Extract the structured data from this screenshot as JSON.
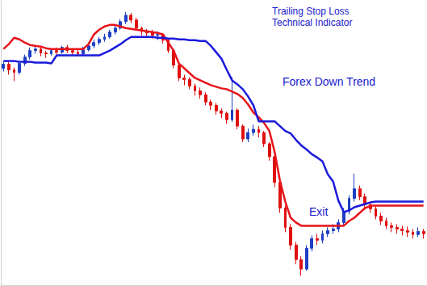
{
  "chart_data": {
    "type": "candlestick",
    "title": "Trailing Stop Loss",
    "subtitle": "Technical Indicator",
    "annotations": [
      "Forex Down Trend",
      "Exit"
    ],
    "tick_labels": false,
    "grid": false,
    "ylim": [
      0,
      354
    ],
    "x": [
      0,
      1,
      2,
      3,
      4,
      5,
      6,
      7,
      8,
      9,
      10,
      11,
      12,
      13,
      14,
      15,
      16,
      17,
      18,
      19,
      20,
      21,
      22,
      23,
      24,
      25,
      26,
      27,
      28,
      29,
      30,
      31,
      32,
      33,
      34,
      35,
      36,
      37,
      38,
      39,
      40,
      41,
      42,
      43,
      44,
      45,
      46,
      47,
      48,
      49,
      50,
      51,
      52,
      53,
      54,
      55,
      56,
      57,
      58,
      59,
      60,
      61,
      62,
      63,
      64,
      65,
      66,
      67,
      68,
      69,
      70,
      71,
      72,
      73,
      74,
      75,
      76,
      77,
      78,
      79
    ],
    "series": [
      {
        "type": "candlestick",
        "colors": [
          "#1f3fc4",
          "#e01010"
        ],
        "open": [
          270,
          275,
          268,
          265,
          276,
          284,
          292,
          294,
          289,
          288,
          292,
          290,
          296,
          292,
          290,
          288,
          293,
          298,
          302,
          306,
          309,
          315,
          320,
          328,
          336,
          330,
          320,
          316,
          314,
          311,
          312,
          305,
          292,
          274,
          258,
          256,
          248,
          242,
          237,
          228,
          224,
          217,
          214,
          206,
          218,
          198,
          182,
          190,
          194,
          190,
          176,
          160,
          128,
          96,
          72,
          50,
          32,
          20,
          46,
          58,
          56,
          64,
          68,
          70,
          78,
          92,
          108,
          120,
          110,
          100,
          95,
          86,
          80,
          74,
          72,
          70,
          68,
          66,
          63,
          67
        ],
        "close": [
          275,
          268,
          265,
          276,
          284,
          292,
          294,
          289,
          288,
          292,
          290,
          296,
          292,
          290,
          288,
          293,
          298,
          302,
          306,
          309,
          315,
          320,
          328,
          336,
          330,
          320,
          316,
          314,
          311,
          312,
          305,
          292,
          274,
          258,
          256,
          248,
          242,
          237,
          228,
          224,
          217,
          214,
          206,
          218,
          198,
          182,
          190,
          194,
          190,
          176,
          160,
          128,
          96,
          72,
          50,
          32,
          20,
          46,
          58,
          56,
          64,
          68,
          70,
          78,
          92,
          108,
          120,
          110,
          100,
          95,
          86,
          80,
          74,
          72,
          70,
          68,
          66,
          63,
          67,
          64
        ],
        "low": [
          266,
          262,
          254,
          262,
          273,
          281,
          288,
          285,
          283,
          286,
          287,
          288,
          289,
          286,
          285,
          286,
          291,
          295,
          299,
          303,
          307,
          312,
          318,
          325,
          326,
          317,
          311,
          309,
          307,
          305,
          301,
          289,
          270,
          254,
          249,
          244,
          236,
          232,
          224,
          218,
          212,
          208,
          201,
          203,
          194,
          178,
          178,
          186,
          184,
          172,
          155,
          122,
          90,
          66,
          44,
          26,
          12,
          18,
          42,
          50,
          52,
          60,
          64,
          66,
          75,
          88,
          104,
          106,
          96,
          90,
          82,
          75,
          70,
          66,
          64,
          62,
          60,
          58,
          60,
          58
        ],
        "high": [
          279,
          278,
          271,
          279,
          287,
          296,
          298,
          296,
          292,
          295,
          296,
          298,
          299,
          295,
          294,
          297,
          302,
          306,
          309,
          313,
          318,
          324,
          331,
          340,
          339,
          333,
          322,
          319,
          318,
          316,
          314,
          307,
          294,
          276,
          262,
          259,
          251,
          246,
          240,
          231,
          227,
          220,
          216,
          259,
          220,
          200,
          195,
          200,
          198,
          192,
          178,
          162,
          131,
          99,
          76,
          54,
          36,
          50,
          62,
          64,
          68,
          72,
          76,
          82,
          96,
          112,
          139,
          124,
          114,
          104,
          98,
          90,
          84,
          78,
          76,
          74,
          73,
          70,
          72,
          70
        ]
      },
      {
        "type": "line",
        "color": "#e8141a",
        "values": [
          294,
          300,
          308,
          306,
          302,
          299,
          298,
          297,
          295,
          294,
          294,
          294,
          294,
          294,
          294,
          294,
          300,
          312,
          318,
          322,
          324,
          324,
          322,
          320,
          319,
          318,
          317,
          316,
          315,
          314,
          312,
          302,
          292,
          276,
          270,
          264,
          258,
          255,
          252,
          249,
          247,
          245,
          244,
          241,
          238,
          233,
          225,
          215,
          209,
          202,
          192,
          166,
          130,
          104,
          84,
          78,
          74,
          74,
          74,
          74,
          74,
          74,
          74,
          74,
          74,
          80,
          84,
          90,
          96,
          99,
          99,
          99,
          99,
          99,
          99,
          99,
          99,
          99,
          99,
          99
        ]
      },
      {
        "type": "line",
        "color": "#1a1adc",
        "values": [
          279,
          279,
          279,
          278,
          278,
          278,
          277,
          277,
          277,
          276,
          286,
          286,
          286,
          286,
          286,
          286,
          286,
          286,
          286,
          289,
          292,
          296,
          300,
          305,
          309,
          309,
          309,
          309,
          309,
          308,
          308,
          307,
          307,
          306,
          306,
          305,
          305,
          304,
          304,
          298,
          290,
          282,
          268,
          255,
          250,
          244,
          235,
          224,
          204,
          204,
          204,
          204,
          198,
          192,
          189,
          181,
          174,
          169,
          163,
          159,
          154,
          138,
          129,
          105,
          91,
          93,
          97,
          99,
          101,
          103,
          104,
          104,
          104,
          104,
          104,
          104,
          104,
          104,
          104,
          104
        ]
      }
    ]
  }
}
